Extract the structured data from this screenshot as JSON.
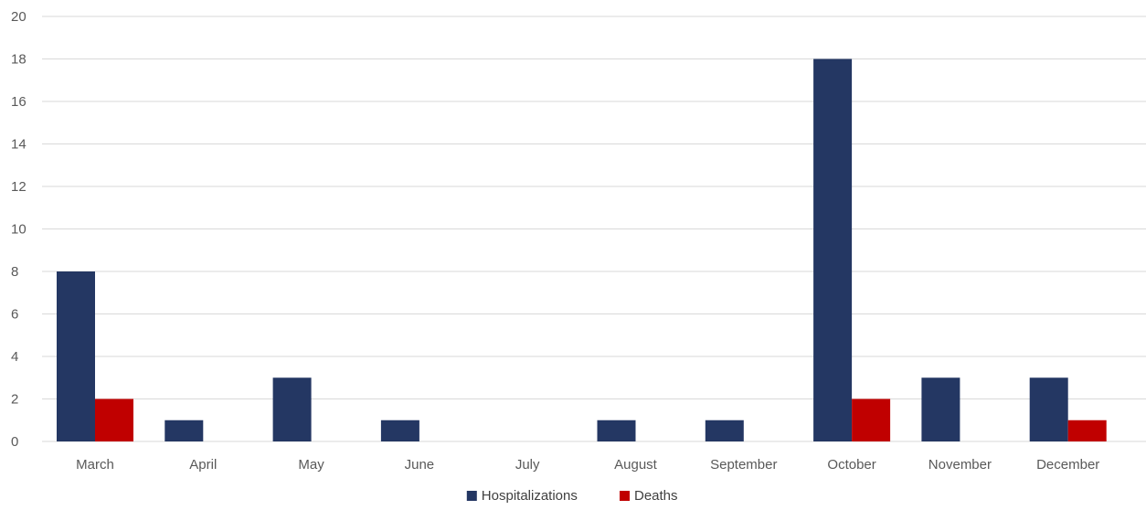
{
  "chart_data": {
    "type": "bar",
    "title": "",
    "xlabel": "",
    "ylabel": "",
    "categories": [
      "March",
      "April",
      "May",
      "June",
      "July",
      "August",
      "September",
      "October",
      "November",
      "December"
    ],
    "series": [
      {
        "name": "Hospitalizations",
        "color": "#243763",
        "values": [
          8,
          1,
          3,
          1,
          0,
          1,
          1,
          18,
          3,
          3
        ]
      },
      {
        "name": "Deaths",
        "color": "#C00000",
        "values": [
          2,
          0,
          0,
          0,
          0,
          0,
          0,
          2,
          0,
          1
        ]
      }
    ],
    "ylim": [
      0,
      20
    ],
    "yticks": [
      0,
      2,
      4,
      6,
      8,
      10,
      12,
      14,
      16,
      18,
      20
    ],
    "grid": true,
    "legend_position": "bottom"
  }
}
